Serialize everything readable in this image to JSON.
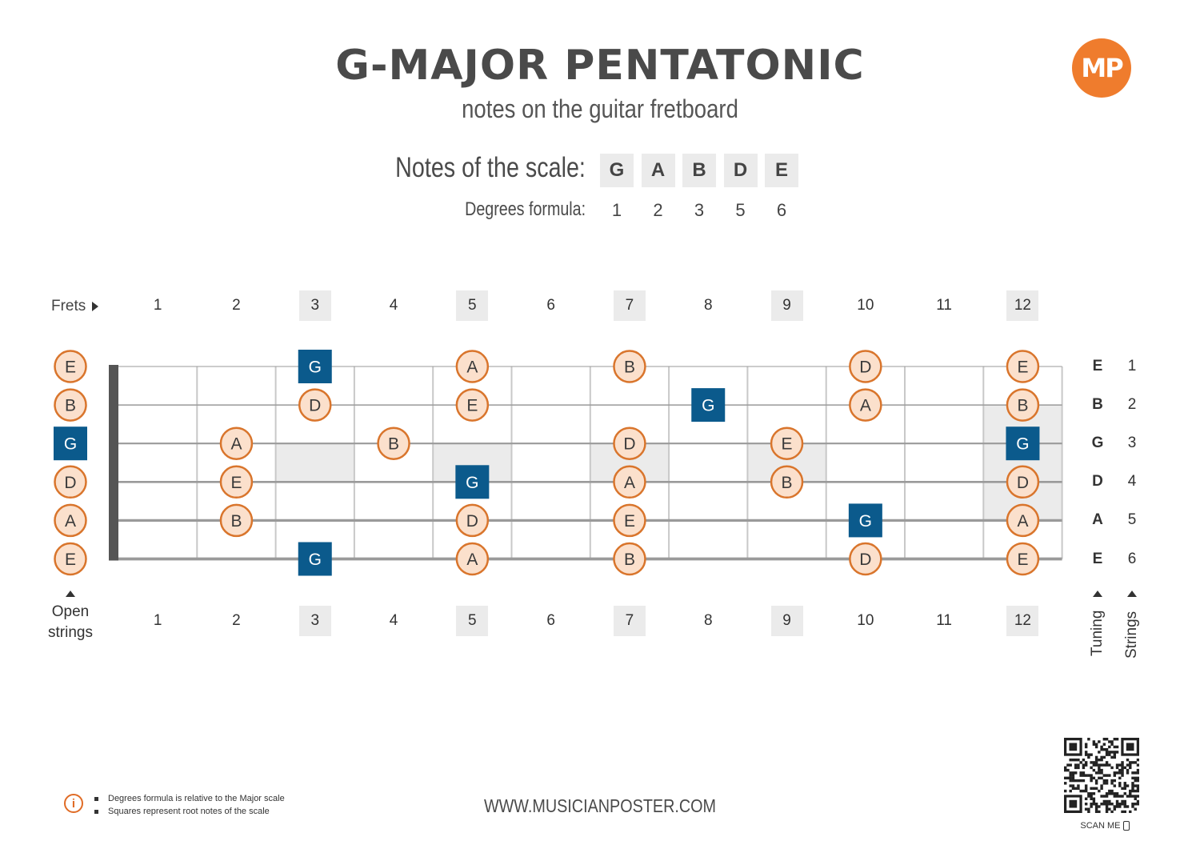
{
  "header": {
    "title": "G-MAJOR PENTATONIC",
    "subtitle": "notes on the guitar fretboard",
    "logo_text": "MP"
  },
  "scale": {
    "notes_label": "Notes of the scale:",
    "formula_label": "Degrees formula:",
    "notes": [
      "G",
      "A",
      "B",
      "D",
      "E"
    ],
    "degrees": [
      "1",
      "2",
      "3",
      "5",
      "6"
    ]
  },
  "frets": {
    "label": "Frets",
    "numbers": [
      "1",
      "2",
      "3",
      "4",
      "5",
      "6",
      "7",
      "8",
      "9",
      "10",
      "11",
      "12"
    ],
    "marked": [
      "3",
      "5",
      "7",
      "9",
      "12"
    ],
    "open_label_line1": "Open",
    "open_label_line2": "strings"
  },
  "strings": {
    "tuning": [
      "E",
      "B",
      "G",
      "D",
      "A",
      "E"
    ],
    "numbers": [
      "1",
      "2",
      "3",
      "4",
      "5",
      "6"
    ],
    "tuning_label": "Tuning",
    "strings_label": "Strings"
  },
  "fretboard": {
    "root_note": "G",
    "positions": [
      {
        "string": 1,
        "fret": 0,
        "note": "E"
      },
      {
        "string": 1,
        "fret": 3,
        "note": "G"
      },
      {
        "string": 1,
        "fret": 5,
        "note": "A"
      },
      {
        "string": 1,
        "fret": 7,
        "note": "B"
      },
      {
        "string": 1,
        "fret": 10,
        "note": "D"
      },
      {
        "string": 1,
        "fret": 12,
        "note": "E"
      },
      {
        "string": 2,
        "fret": 0,
        "note": "B"
      },
      {
        "string": 2,
        "fret": 3,
        "note": "D"
      },
      {
        "string": 2,
        "fret": 5,
        "note": "E"
      },
      {
        "string": 2,
        "fret": 8,
        "note": "G"
      },
      {
        "string": 2,
        "fret": 10,
        "note": "A"
      },
      {
        "string": 2,
        "fret": 12,
        "note": "B"
      },
      {
        "string": 3,
        "fret": 0,
        "note": "G"
      },
      {
        "string": 3,
        "fret": 2,
        "note": "A"
      },
      {
        "string": 3,
        "fret": 4,
        "note": "B"
      },
      {
        "string": 3,
        "fret": 7,
        "note": "D"
      },
      {
        "string": 3,
        "fret": 9,
        "note": "E"
      },
      {
        "string": 3,
        "fret": 12,
        "note": "G"
      },
      {
        "string": 4,
        "fret": 0,
        "note": "D"
      },
      {
        "string": 4,
        "fret": 2,
        "note": "E"
      },
      {
        "string": 4,
        "fret": 5,
        "note": "G"
      },
      {
        "string": 4,
        "fret": 7,
        "note": "A"
      },
      {
        "string": 4,
        "fret": 9,
        "note": "B"
      },
      {
        "string": 4,
        "fret": 12,
        "note": "D"
      },
      {
        "string": 5,
        "fret": 0,
        "note": "A"
      },
      {
        "string": 5,
        "fret": 2,
        "note": "B"
      },
      {
        "string": 5,
        "fret": 5,
        "note": "D"
      },
      {
        "string": 5,
        "fret": 7,
        "note": "E"
      },
      {
        "string": 5,
        "fret": 10,
        "note": "G"
      },
      {
        "string": 5,
        "fret": 12,
        "note": "A"
      },
      {
        "string": 6,
        "fret": 0,
        "note": "E"
      },
      {
        "string": 6,
        "fret": 3,
        "note": "G"
      },
      {
        "string": 6,
        "fret": 5,
        "note": "A"
      },
      {
        "string": 6,
        "fret": 7,
        "note": "B"
      },
      {
        "string": 6,
        "fret": 10,
        "note": "D"
      },
      {
        "string": 6,
        "fret": 12,
        "note": "E"
      }
    ]
  },
  "footer": {
    "url": "WWW.MUSICIANPOSTER.COM",
    "notes": [
      "Degrees formula is relative to the Major scale",
      "Squares represent root notes of the scale"
    ],
    "info_icon": "info-icon",
    "qr_label": "SCAN ME"
  },
  "colors": {
    "root": "#0b5a8c",
    "note_fill": "#fbe0cc",
    "note_border": "#d9752c",
    "marker": "#ebebeb",
    "nut": "#555555",
    "logo": "#ef7c2d"
  }
}
